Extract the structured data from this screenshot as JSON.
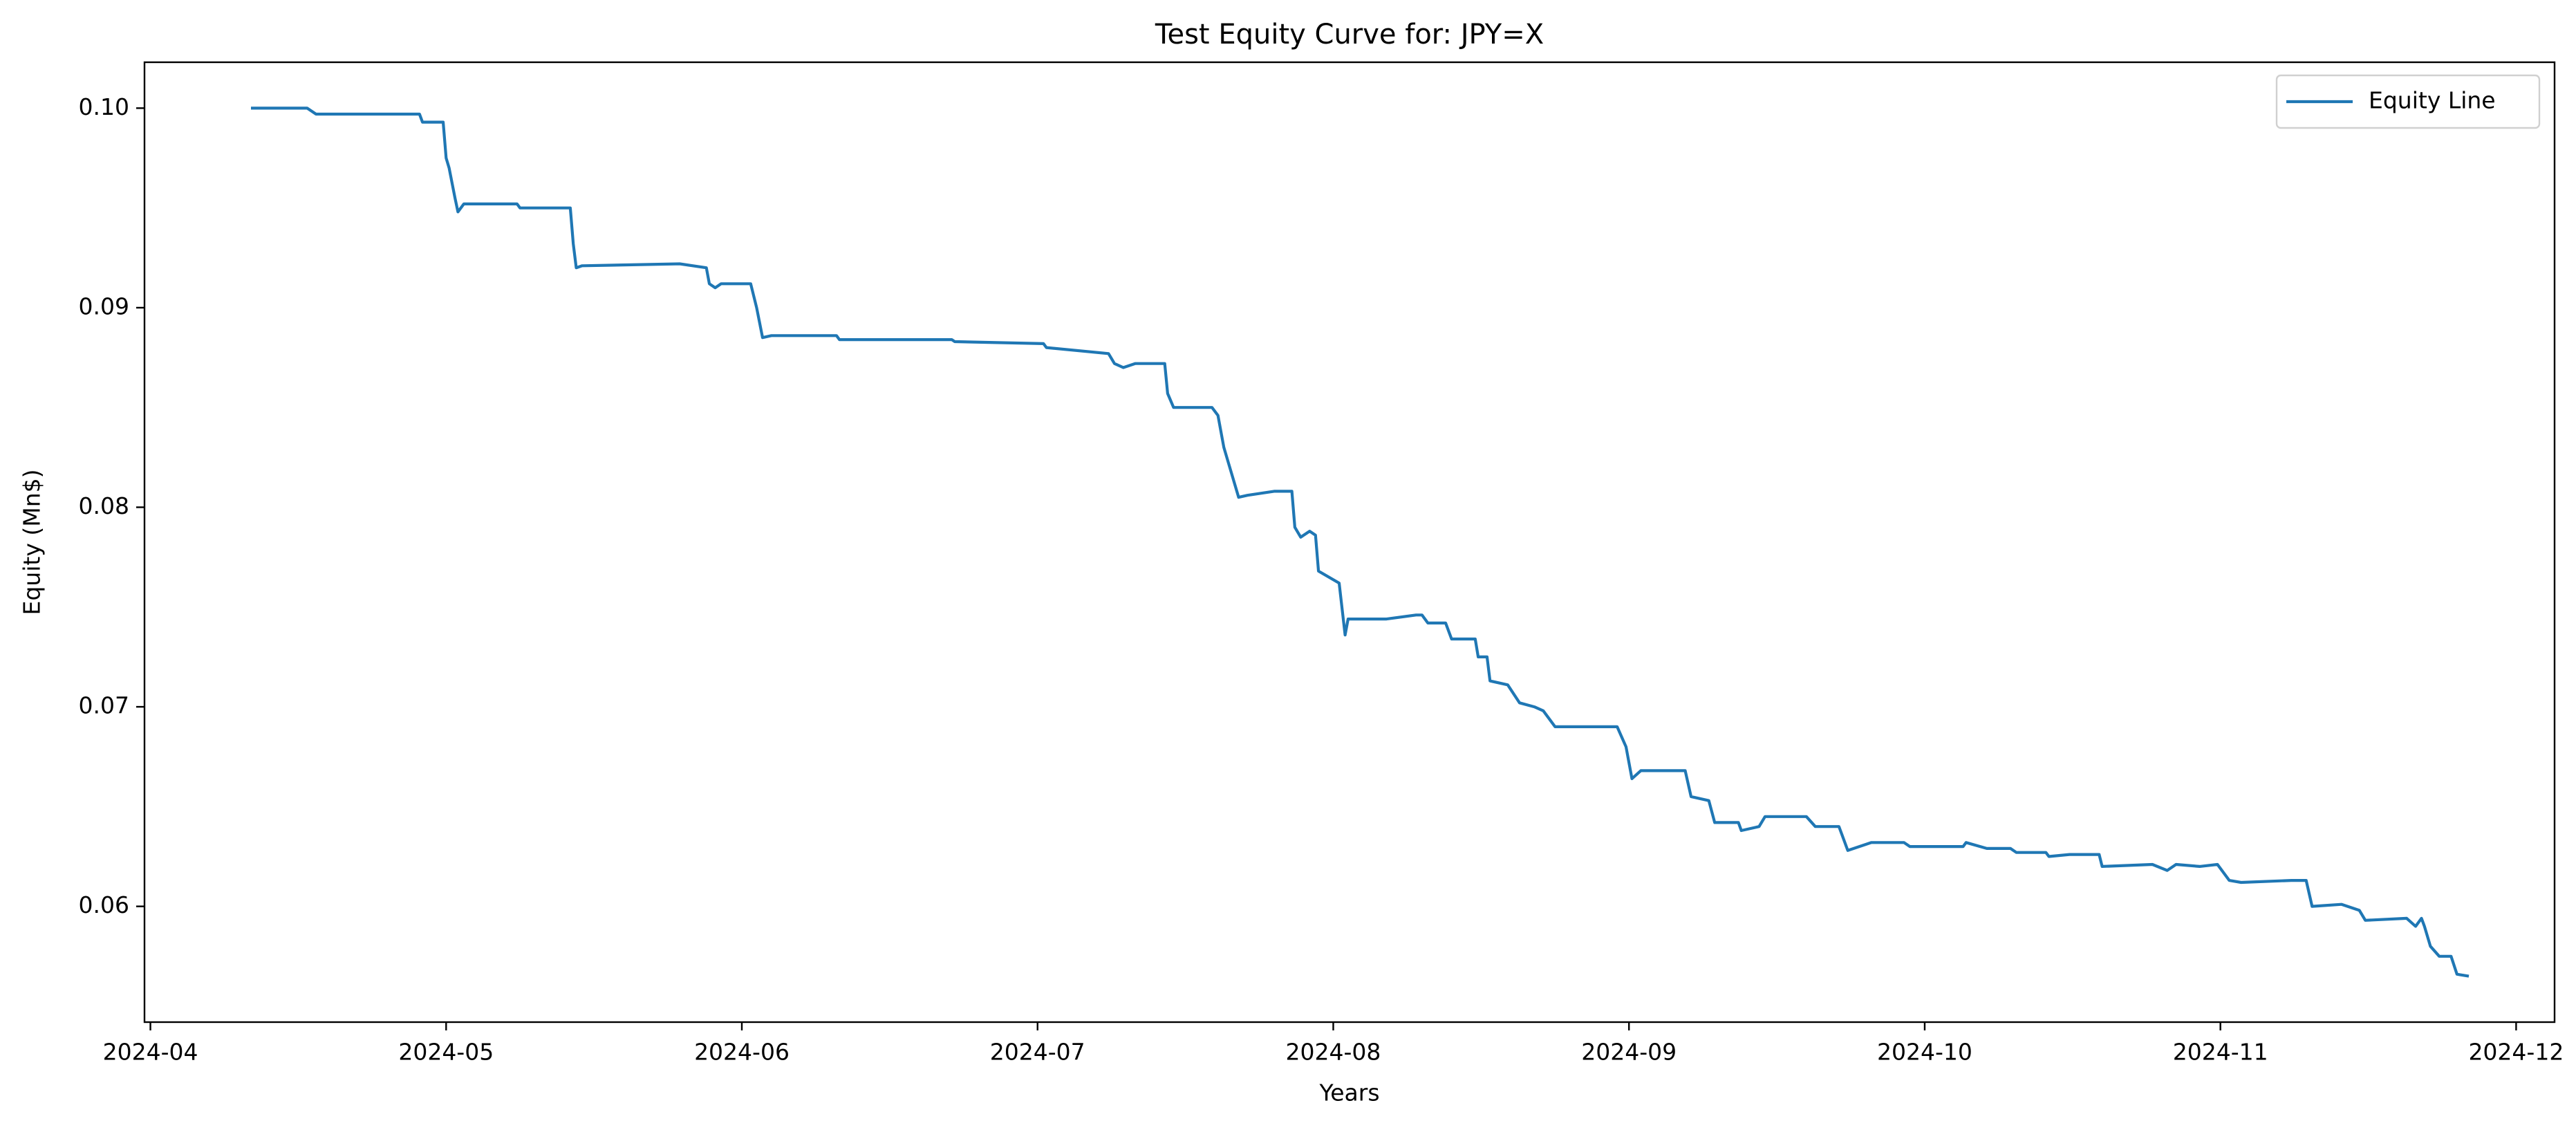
{
  "chart_data": {
    "type": "line",
    "title": "Test Equity Curve for: JPY=X",
    "x_label": "Years",
    "y_label": "Equity (Mn$)",
    "x": [
      4.34,
      4.53,
      4.56,
      4.91,
      4.92,
      4.99,
      5.0,
      5.01,
      5.03,
      5.04,
      5.06,
      5.24,
      5.25,
      5.42,
      5.43,
      5.44,
      5.46,
      5.79,
      5.88,
      5.89,
      5.91,
      5.93,
      6.03,
      6.05,
      6.07,
      6.1,
      6.32,
      6.33,
      6.71,
      6.72,
      7.02,
      7.03,
      7.24,
      7.26,
      7.29,
      7.33,
      7.43,
      7.44,
      7.46,
      7.59,
      7.61,
      7.63,
      7.67,
      7.68,
      7.71,
      7.8,
      7.86,
      7.87,
      7.89,
      7.92,
      7.94,
      7.95,
      8.02,
      8.04,
      8.05,
      8.18,
      8.28,
      8.3,
      8.32,
      8.38,
      8.4,
      8.48,
      8.49,
      8.52,
      8.53,
      8.59,
      8.63,
      8.68,
      8.71,
      8.75,
      8.96,
      8.99,
      9.01,
      9.04,
      9.19,
      9.21,
      9.27,
      9.29,
      9.37,
      9.38,
      9.44,
      9.46,
      9.6,
      9.63,
      9.71,
      9.74,
      9.82,
      9.93,
      9.95,
      10.13,
      10.14,
      10.21,
      10.29,
      10.31,
      10.41,
      10.42,
      10.49,
      10.59,
      10.6,
      10.77,
      10.82,
      10.85,
      10.93,
      10.99,
      11.03,
      11.07,
      11.24,
      11.29,
      11.31,
      11.41,
      11.47,
      11.49,
      11.63,
      11.66,
      11.68,
      11.69,
      11.71,
      11.74,
      11.78,
      11.8,
      11.84
    ],
    "series": [
      {
        "name": "Equity Line",
        "color": "#1f77b4",
        "values": [
          0.1,
          0.1,
          0.0997,
          0.0997,
          0.0993,
          0.0993,
          0.0975,
          0.097,
          0.0955,
          0.0948,
          0.0952,
          0.0952,
          0.095,
          0.095,
          0.0932,
          0.092,
          0.0921,
          0.0922,
          0.092,
          0.0912,
          0.091,
          0.0912,
          0.0912,
          0.09,
          0.0885,
          0.0886,
          0.0886,
          0.0884,
          0.0884,
          0.0883,
          0.0882,
          0.088,
          0.0877,
          0.0872,
          0.087,
          0.0872,
          0.0872,
          0.0857,
          0.085,
          0.085,
          0.0846,
          0.083,
          0.081,
          0.0805,
          0.0806,
          0.0808,
          0.0808,
          0.079,
          0.0785,
          0.0788,
          0.0786,
          0.0768,
          0.0762,
          0.0736,
          0.0744,
          0.0744,
          0.0746,
          0.0746,
          0.0742,
          0.0742,
          0.0734,
          0.0734,
          0.0725,
          0.0725,
          0.0713,
          0.0711,
          0.0702,
          0.07,
          0.0698,
          0.069,
          0.069,
          0.068,
          0.0664,
          0.0668,
          0.0668,
          0.0655,
          0.0653,
          0.0642,
          0.0642,
          0.0638,
          0.064,
          0.0645,
          0.0645,
          0.064,
          0.064,
          0.0628,
          0.0632,
          0.0632,
          0.063,
          0.063,
          0.0632,
          0.0629,
          0.0629,
          0.0627,
          0.0627,
          0.0625,
          0.0626,
          0.0626,
          0.062,
          0.0621,
          0.0618,
          0.0621,
          0.062,
          0.0621,
          0.0613,
          0.0612,
          0.0613,
          0.0613,
          0.06,
          0.0601,
          0.0598,
          0.0593,
          0.0594,
          0.059,
          0.0594,
          0.059,
          0.058,
          0.0575,
          0.0575,
          0.0566,
          0.0565
        ]
      }
    ],
    "xlim": [
      3.98,
      12.13
    ],
    "xticks": [
      {
        "value": 4,
        "label": "2024-04"
      },
      {
        "value": 5,
        "label": "2024-05"
      },
      {
        "value": 6,
        "label": "2024-06"
      },
      {
        "value": 7,
        "label": "2024-07"
      },
      {
        "value": 8,
        "label": "2024-08"
      },
      {
        "value": 9,
        "label": "2024-09"
      },
      {
        "value": 10,
        "label": "2024-10"
      },
      {
        "value": 11,
        "label": "2024-11"
      },
      {
        "value": 12,
        "label": "2024-12"
      }
    ],
    "ylim": [
      0.0542,
      0.1023
    ],
    "yticks": [
      0.06,
      0.07,
      0.08,
      0.09,
      {
        "value": 0.1,
        "label": "0.10"
      }
    ],
    "grid": false,
    "legend": "upper right"
  }
}
